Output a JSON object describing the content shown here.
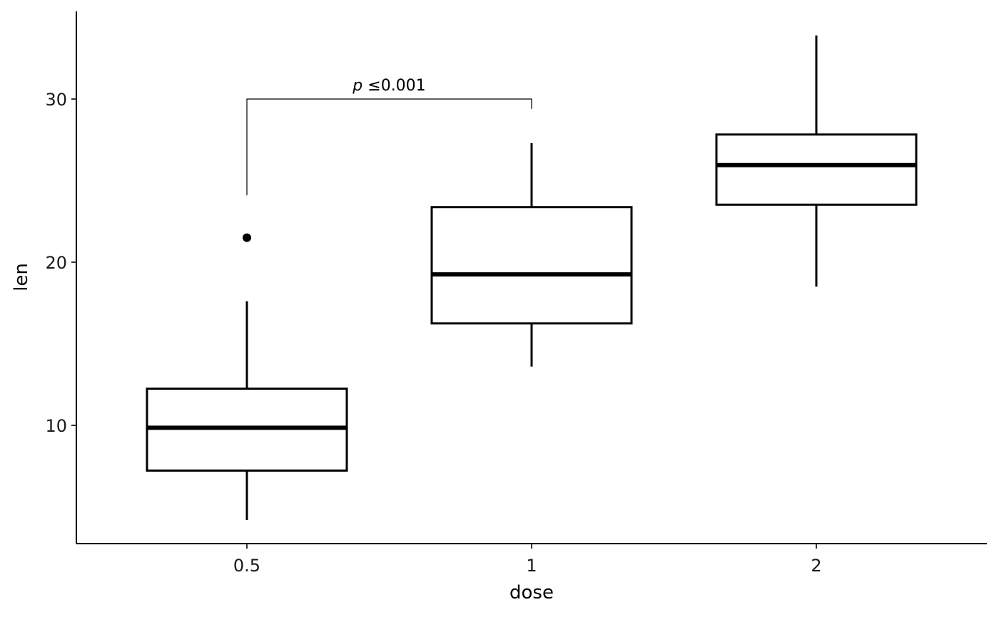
{
  "chart_data": {
    "type": "boxplot",
    "title": "",
    "xlabel": "dose",
    "ylabel": "len",
    "categories": [
      "0.5",
      "1",
      "2"
    ],
    "yticks": [
      10,
      20,
      30
    ],
    "ytick_labels": [
      "10",
      "20",
      "30"
    ],
    "ylim": [
      2.7,
      35.4
    ],
    "grid": false,
    "boxes": [
      {
        "category": "0.5",
        "whisker_low": 4.2,
        "q1": 7.225,
        "median": 9.85,
        "q3": 12.25,
        "whisker_high": 17.6,
        "outliers": [
          21.5
        ]
      },
      {
        "category": "1",
        "whisker_low": 13.6,
        "q1": 16.25,
        "median": 19.25,
        "q3": 23.375,
        "whisker_high": 27.3,
        "outliers": []
      },
      {
        "category": "2",
        "whisker_low": 18.5,
        "q1": 23.525,
        "median": 25.95,
        "q3": 27.825,
        "whisker_high": 33.9,
        "outliers": []
      }
    ],
    "annotations": [
      {
        "type": "significance-bracket",
        "from": "0.5",
        "to": "1",
        "y": 30,
        "left_tip": 24.1,
        "right_tip": 29.4,
        "label_italic": "p",
        "label": " ≤0.001"
      }
    ],
    "colors": {
      "box_outline": "#000000",
      "box_fill": "#ffffff"
    }
  }
}
